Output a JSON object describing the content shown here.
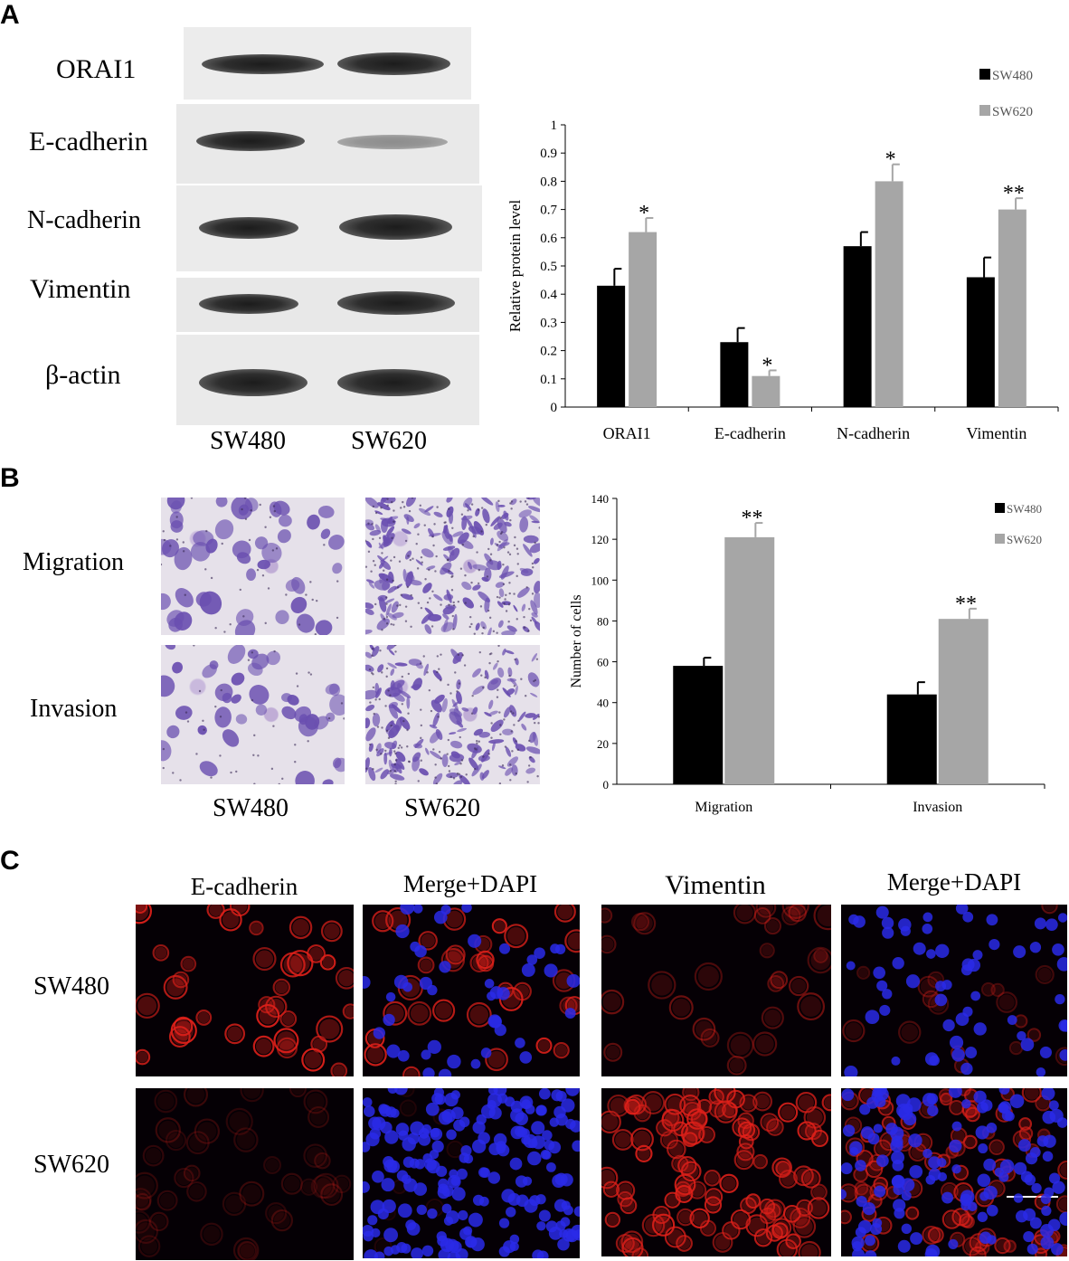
{
  "panels": {
    "a": {
      "letter": "A",
      "blot_labels": [
        "ORAI1",
        "E-cadherin",
        "N-cadherin",
        "Vimentin",
        "β-actin"
      ],
      "lane_labels": [
        "SW480",
        "SW620"
      ],
      "band_intensity": [
        [
          0.8,
          1.0
        ],
        [
          0.85,
          0.4
        ],
        [
          0.75,
          1.0
        ],
        [
          0.7,
          1.0
        ],
        [
          1.0,
          1.0
        ]
      ]
    },
    "b": {
      "letter": "B",
      "row_labels": [
        "Migration",
        "Invasion"
      ],
      "col_labels": [
        "SW480",
        "SW620"
      ]
    },
    "c": {
      "letter": "C",
      "col_labels": [
        "E-cadherin",
        "Merge+DAPI",
        "Vimentin",
        "Merge+DAPI"
      ],
      "row_labels": [
        "SW480",
        "SW620"
      ]
    }
  },
  "colors": {
    "sw480": "#000000",
    "sw620": "#a6a6a6",
    "stain": "#6a4fb0",
    "fluor_red": "#e0201a",
    "fluor_blue": "#2a2ae8"
  },
  "chart_data": [
    {
      "type": "bar",
      "categories": [
        "ORAI1",
        "E-cadherin",
        "N-cadherin",
        "Vimentin"
      ],
      "series": [
        {
          "name": "SW480",
          "values": [
            0.43,
            0.23,
            0.57,
            0.46
          ],
          "errors": [
            0.06,
            0.05,
            0.05,
            0.07
          ]
        },
        {
          "name": "SW620",
          "values": [
            0.62,
            0.11,
            0.8,
            0.7
          ],
          "errors": [
            0.05,
            0.02,
            0.06,
            0.04
          ]
        }
      ],
      "significance": [
        "*",
        "*",
        "*",
        "**"
      ],
      "ylabel": "Relative protein level",
      "ylim": [
        0,
        1
      ],
      "yticks": [
        "0",
        "0.1",
        "0.2",
        "0.3",
        "0.4",
        "0.5",
        "0.6",
        "0.7",
        "0.8",
        "0.9",
        "1"
      ],
      "legend": "top-right"
    },
    {
      "type": "bar",
      "categories": [
        "Migration",
        "Invasion"
      ],
      "series": [
        {
          "name": "SW480",
          "values": [
            58,
            44
          ],
          "errors": [
            4,
            6
          ]
        },
        {
          "name": "SW620",
          "values": [
            121,
            81
          ],
          "errors": [
            7,
            5
          ]
        }
      ],
      "significance": [
        "**",
        "**"
      ],
      "ylabel": "Number of cells",
      "ylim": [
        0,
        140
      ],
      "yticks": [
        "0",
        "20",
        "40",
        "60",
        "80",
        "100",
        "120",
        "140"
      ],
      "legend": "top-right"
    }
  ]
}
